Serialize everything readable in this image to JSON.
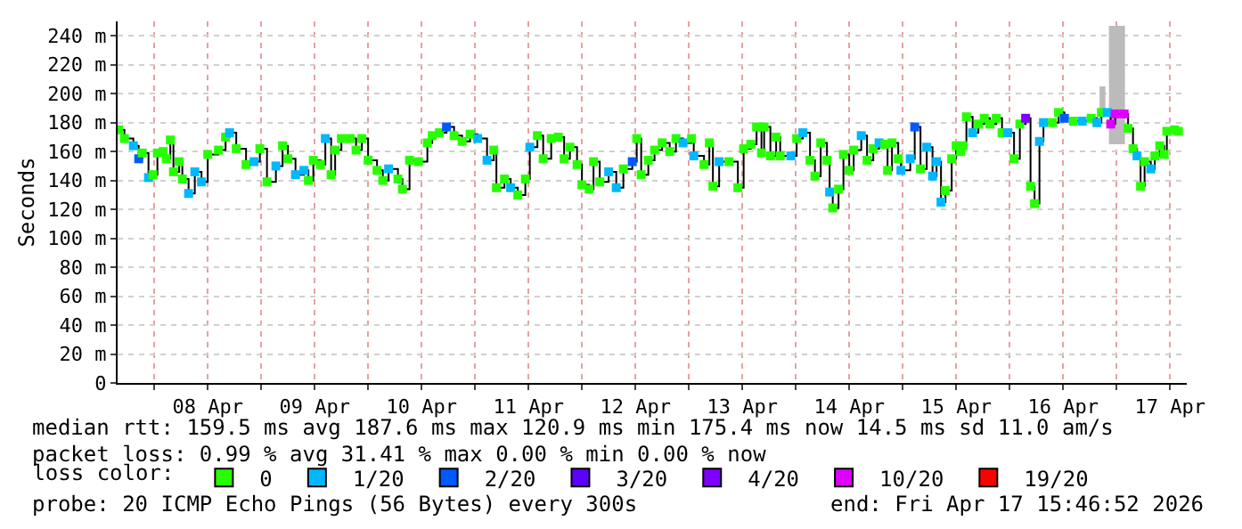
{
  "chart_data": {
    "type": "step",
    "ylabel": "Seconds",
    "legend_title": "loss color:",
    "legend": "bottom",
    "grid": true,
    "marker": "square",
    "line_style": "solid",
    "xlim": [
      "2026-04-07T15:46",
      "2026-04-17T15:46"
    ],
    "xticks": [
      {
        "value": "2026-04-08T00:00",
        "label": null
      },
      {
        "value": "2026-04-08T12:00",
        "label": "08 Apr"
      },
      {
        "value": "2026-04-09T00:00",
        "label": null
      },
      {
        "value": "2026-04-09T12:00",
        "label": "09 Apr"
      },
      {
        "value": "2026-04-10T00:00",
        "label": null
      },
      {
        "value": "2026-04-10T12:00",
        "label": "10 Apr"
      },
      {
        "value": "2026-04-11T00:00",
        "label": null
      },
      {
        "value": "2026-04-11T12:00",
        "label": "11 Apr"
      },
      {
        "value": "2026-04-12T00:00",
        "label": null
      },
      {
        "value": "2026-04-12T12:00",
        "label": "12 Apr"
      },
      {
        "value": "2026-04-13T00:00",
        "label": null
      },
      {
        "value": "2026-04-13T12:00",
        "label": "13 Apr"
      },
      {
        "value": "2026-04-14T00:00",
        "label": null
      },
      {
        "value": "2026-04-14T12:00",
        "label": "14 Apr"
      },
      {
        "value": "2026-04-15T00:00",
        "label": null
      },
      {
        "value": "2026-04-15T12:00",
        "label": "15 Apr"
      },
      {
        "value": "2026-04-16T00:00",
        "label": null
      },
      {
        "value": "2026-04-16T12:00",
        "label": "16 Apr"
      },
      {
        "value": "2026-04-17T00:00",
        "label": null
      },
      {
        "value": "2026-04-17T12:00",
        "label": "17 Apr"
      }
    ],
    "ylim": [
      0,
      250
    ],
    "yticks": [
      0,
      {
        "value": 20,
        "label": "20 m"
      },
      {
        "value": 40,
        "label": "40 m"
      },
      {
        "value": 60,
        "label": "60 m"
      },
      {
        "value": 80,
        "label": "80 m"
      },
      {
        "value": 100,
        "label": "100 m"
      },
      {
        "value": 120,
        "label": "120 m"
      },
      {
        "value": 140,
        "label": "140 m"
      },
      {
        "value": 160,
        "label": "160 m"
      },
      {
        "value": 180,
        "label": "180 m"
      },
      {
        "value": 200,
        "label": "200 m"
      },
      {
        "value": 220,
        "label": "220 m"
      },
      {
        "value": 240,
        "label": "240 m"
      }
    ],
    "annotations": [
      "median rtt: 159.5 ms avg 187.6 ms max 120.9 ms min 175.4 ms now 14.5 ms sd 11.0 am/s",
      "packet loss: 0.99 % avg 31.41 % max 0.00 % min 0.00 % now",
      "probe: 20 ICMP Echo Pings (56 Bytes) every 300s",
      "end: Fri Apr 17 15:46:52 2026"
    ],
    "series": [
      {
        "type": "area",
        "color": "#bbbbbb",
        "x": [
          "2026-04-16T20:12",
          "2026-04-16T21:30",
          "2026-04-16T22:18",
          "2026-04-17T01:54"
        ],
        "values": [
          null,
          null,
          null,
          null
        ],
        "lower": [
          187,
          187,
          165,
          187
        ],
        "upper": [
          205,
          187,
          247,
          247
        ]
      },
      {
        "color": "#000000",
        "x": [
          "2026-04-07T16:00",
          "2026-04-07T17:18",
          "2026-04-07T19:18",
          "2026-04-07T20:30",
          "2026-04-07T21:18",
          "2026-04-07T22:42",
          "2026-04-07T23:42",
          "2026-04-08T00:42",
          "2026-04-08T02:00",
          "2026-04-08T02:42",
          "2026-04-08T03:36",
          "2026-04-08T04:18",
          "2026-04-08T05:36",
          "2026-04-08T06:18",
          "2026-04-08T07:42",
          "2026-04-08T09:06",
          "2026-04-08T10:36",
          "2026-04-08T12:00",
          "2026-04-08T14:24",
          "2026-04-08T16:00",
          "2026-04-08T16:54",
          "2026-04-08T18:24",
          "2026-04-08T20:36",
          "2026-04-08T22:24",
          "2026-04-08T23:42",
          "2026-04-09T01:18",
          "2026-04-09T03:18",
          "2026-04-09T04:48",
          "2026-04-09T06:00",
          "2026-04-09T07:42",
          "2026-04-09T09:36",
          "2026-04-09T10:36",
          "2026-04-09T11:42",
          "2026-04-09T13:18",
          "2026-04-09T14:24",
          "2026-04-09T15:42",
          "2026-04-09T16:36",
          "2026-04-09T18:00",
          "2026-04-09T20:00",
          "2026-04-09T21:18",
          "2026-04-09T22:36",
          "2026-04-10T00:00",
          "2026-04-10T02:00",
          "2026-04-10T03:18",
          "2026-04-10T04:36",
          "2026-04-10T06:42",
          "2026-04-10T07:42",
          "2026-04-10T09:18",
          "2026-04-10T11:18",
          "2026-04-10T13:18",
          "2026-04-10T14:24",
          "2026-04-10T16:00",
          "2026-04-10T17:36",
          "2026-04-10T19:18",
          "2026-04-10T21:06",
          "2026-04-10T22:54",
          "2026-04-11T00:36",
          "2026-04-11T02:42",
          "2026-04-11T04:12",
          "2026-04-11T04:48",
          "2026-04-11T06:36",
          "2026-04-11T08:00",
          "2026-04-11T09:36",
          "2026-04-11T11:18",
          "2026-04-11T12:18",
          "2026-04-11T14:00",
          "2026-04-11T15:18",
          "2026-04-11T17:06",
          "2026-04-11T18:42",
          "2026-04-11T20:00",
          "2026-04-11T21:18",
          "2026-04-11T22:54",
          "2026-04-12T00:00",
          "2026-04-12T01:36",
          "2026-04-12T02:36",
          "2026-04-12T04:00",
          "2026-04-12T06:00",
          "2026-04-12T07:42",
          "2026-04-12T09:18",
          "2026-04-12T11:18",
          "2026-04-12T12:18",
          "2026-04-12T13:18",
          "2026-04-12T14:54",
          "2026-04-12T16:18",
          "2026-04-12T18:00",
          "2026-04-12T19:42",
          "2026-04-12T21:06",
          "2026-04-12T22:42",
          "2026-04-13T00:36",
          "2026-04-13T01:06",
          "2026-04-13T03:24",
          "2026-04-13T04:36",
          "2026-04-13T05:24",
          "2026-04-13T06:48",
          "2026-04-13T09:00",
          "2026-04-13T11:00",
          "2026-04-13T12:18",
          "2026-04-13T13:54",
          "2026-04-13T15:12",
          "2026-04-13T16:18",
          "2026-04-13T16:54",
          "2026-04-13T18:18",
          "2026-04-13T19:36",
          "2026-04-13T20:30",
          "2026-04-13T22:54",
          "2026-04-14T00:12",
          "2026-04-14T01:36",
          "2026-04-14T03:12",
          "2026-04-14T04:18",
          "2026-04-14T05:36",
          "2026-04-14T07:00",
          "2026-04-14T07:36",
          "2026-04-14T08:18",
          "2026-04-14T09:36",
          "2026-04-14T10:42",
          "2026-04-14T12:00",
          "2026-04-14T13:00",
          "2026-04-14T14:42",
          "2026-04-14T16:00",
          "2026-04-14T17:24",
          "2026-04-14T18:42",
          "2026-04-14T20:00",
          "2026-04-14T20:36",
          "2026-04-14T21:36",
          "2026-04-14T23:00",
          "2026-04-14T23:36",
          "2026-04-15T01:42",
          "2026-04-15T02:42",
          "2026-04-15T04:00",
          "2026-04-15T05:24",
          "2026-04-15T06:42",
          "2026-04-15T07:36",
          "2026-04-15T08:36",
          "2026-04-15T09:36",
          "2026-04-15T11:00",
          "2026-04-15T12:00",
          "2026-04-15T13:00",
          "2026-04-15T13:36",
          "2026-04-15T14:18",
          "2026-04-15T15:42",
          "2026-04-15T17:00",
          "2026-04-15T18:18",
          "2026-04-15T19:36",
          "2026-04-15T21:00",
          "2026-04-15T22:18",
          "2026-04-15T23:36",
          "2026-04-16T01:00",
          "2026-04-16T02:18",
          "2026-04-16T03:36",
          "2026-04-16T04:42",
          "2026-04-16T05:36",
          "2026-04-16T06:42",
          "2026-04-16T07:36",
          "2026-04-16T09:36",
          "2026-04-16T11:00",
          "2026-04-16T12:18",
          "2026-04-16T14:18",
          "2026-04-16T16:18",
          "2026-04-16T18:18",
          "2026-04-16T19:36",
          "2026-04-16T20:36",
          "2026-04-16T21:54",
          "2026-04-16T22:42",
          "2026-04-16T23:42",
          "2026-04-17T01:42",
          "2026-04-17T02:36",
          "2026-04-17T03:42",
          "2026-04-17T04:36",
          "2026-04-17T05:24",
          "2026-04-17T06:18",
          "2026-04-17T07:42",
          "2026-04-17T08:36",
          "2026-04-17T09:42",
          "2026-04-17T10:42",
          "2026-04-17T11:18",
          "2026-04-17T13:00",
          "2026-04-17T13:54"
        ],
        "values": [
          175,
          169,
          164,
          155,
          159,
          142,
          144,
          159,
          160,
          155,
          168,
          146,
          153,
          141,
          131,
          146,
          139,
          158,
          161,
          170,
          173,
          162,
          151,
          153,
          162,
          139,
          150,
          164,
          155,
          144,
          147,
          140,
          154,
          151,
          169,
          144,
          161,
          169,
          169,
          161,
          169,
          154,
          147,
          140,
          148,
          141,
          134,
          154,
          153,
          166,
          171,
          173,
          177,
          171,
          167,
          172,
          169,
          154,
          161,
          135,
          141,
          135,
          130,
          141,
          163,
          171,
          155,
          169,
          170,
          155,
          163,
          151,
          137,
          134,
          153,
          139,
          146,
          135,
          148,
          153,
          169,
          144,
          154,
          161,
          166,
          160,
          169,
          166,
          169,
          157,
          151,
          166,
          136,
          153,
          153,
          135,
          162,
          165,
          177,
          159,
          177,
          157,
          170,
          157,
          157,
          169,
          173,
          154,
          143,
          166,
          154,
          132,
          121,
          134,
          158,
          147,
          161,
          171,
          154,
          162,
          166,
          165,
          147,
          166,
          155,
          147,
          155,
          177,
          148,
          163,
          143,
          153,
          125,
          133,
          155,
          164,
          160,
          164,
          184,
          173,
          179,
          183,
          179,
          183,
          173,
          173,
          155,
          179,
          183,
          136,
          124,
          167,
          180,
          180,
          187,
          183,
          181,
          181,
          183,
          180,
          187,
          187,
          179,
          186,
          186,
          176,
          162,
          157,
          136,
          153,
          148,
          157,
          164,
          158,
          174,
          175,
          174
        ],
        "colors": [
          "#26ff00",
          "#26ff00",
          "#00b8ff",
          "#0059ff",
          "#26ff00",
          "#00b8ff",
          "#26ff00",
          "#26ff00",
          "#26ff00",
          "#26ff00",
          "#26ff00",
          "#26ff00",
          "#26ff00",
          "#26ff00",
          "#00b8ff",
          "#00b8ff",
          "#00b8ff",
          "#26ff00",
          "#26ff00",
          "#26ff00",
          "#00b8ff",
          "#26ff00",
          "#26ff00",
          "#00b8ff",
          "#26ff00",
          "#26ff00",
          "#00b8ff",
          "#26ff00",
          "#26ff00",
          "#00b8ff",
          "#00b8ff",
          "#26ff00",
          "#26ff00",
          "#26ff00",
          "#00b8ff",
          "#26ff00",
          "#26ff00",
          "#26ff00",
          "#26ff00",
          "#26ff00",
          "#26ff00",
          "#26ff00",
          "#26ff00",
          "#26ff00",
          "#00b8ff",
          "#26ff00",
          "#26ff00",
          "#26ff00",
          "#26ff00",
          "#26ff00",
          "#26ff00",
          "#26ff00",
          "#0059ff",
          "#26ff00",
          "#26ff00",
          "#26ff00",
          "#00b8ff",
          "#00b8ff",
          "#26ff00",
          "#26ff00",
          "#26ff00",
          "#00b8ff",
          "#26ff00",
          "#26ff00",
          "#00b8ff",
          "#26ff00",
          "#26ff00",
          "#26ff00",
          "#26ff00",
          "#26ff00",
          "#26ff00",
          "#26ff00",
          "#26ff00",
          "#26ff00",
          "#26ff00",
          "#26ff00",
          "#00b8ff",
          "#00b8ff",
          "#26ff00",
          "#0059ff",
          "#26ff00",
          "#26ff00",
          "#26ff00",
          "#26ff00",
          "#26ff00",
          "#26ff00",
          "#26ff00",
          "#00b8ff",
          "#26ff00",
          "#00b8ff",
          "#26ff00",
          "#26ff00",
          "#26ff00",
          "#00b8ff",
          "#26ff00",
          "#26ff00",
          "#26ff00",
          "#26ff00",
          "#26ff00",
          "#26ff00",
          "#26ff00",
          "#26ff00",
          "#26ff00",
          "#26ff00",
          "#00b8ff",
          "#26ff00",
          "#00b8ff",
          "#26ff00",
          "#26ff00",
          "#26ff00",
          "#26ff00",
          "#00b8ff",
          "#26ff00",
          "#26ff00",
          "#26ff00",
          "#26ff00",
          "#26ff00",
          "#00b8ff",
          "#26ff00",
          "#26ff00",
          "#00b8ff",
          "#26ff00",
          "#26ff00",
          "#26ff00",
          "#26ff00",
          "#00b8ff",
          "#00b8ff",
          "#0059ff",
          "#26ff00",
          "#00b8ff",
          "#00b8ff",
          "#00b8ff",
          "#00b8ff",
          "#26ff00",
          "#26ff00",
          "#26ff00",
          "#26ff00",
          "#26ff00",
          "#26ff00",
          "#00b8ff",
          "#26ff00",
          "#26ff00",
          "#26ff00",
          "#26ff00",
          "#26ff00",
          "#00b8ff",
          "#26ff00",
          "#26ff00",
          "#7e00ff",
          "#26ff00",
          "#26ff00",
          "#00b8ff",
          "#00b8ff",
          "#26ff00",
          "#26ff00",
          "#0059ff",
          "#26ff00",
          "#00b8ff",
          "#26ff00",
          "#00b8ff",
          "#26ff00",
          "#00b8ff",
          "#dd00ff",
          "#dd00ff",
          "#dd00ff",
          "#26ff00",
          "#26ff00",
          "#00b8ff",
          "#26ff00",
          "#26ff00",
          "#00b8ff",
          "#26ff00",
          "#26ff00",
          "#26ff00",
          "#26ff00",
          "#26ff00",
          "#26ff00"
        ]
      },
      {
        "type": "scatter",
        "name": "0",
        "color": "#26ff00"
      },
      {
        "type": "scatter",
        "name": "1/20",
        "color": "#00b8ff"
      },
      {
        "type": "scatter",
        "name": "2/20",
        "color": "#0059ff"
      },
      {
        "type": "scatter",
        "name": "3/20",
        "color": "#5e00ff"
      },
      {
        "type": "scatter",
        "name": "4/20",
        "color": "#7e00ff"
      },
      {
        "type": "scatter",
        "name": "10/20",
        "color": "#dd00ff"
      },
      {
        "type": "scatter",
        "name": "19/20",
        "color": "#ff0000"
      }
    ]
  }
}
